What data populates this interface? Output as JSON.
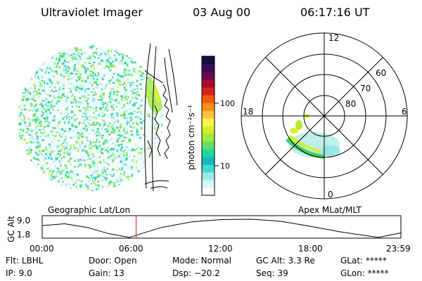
{
  "header": {
    "title": "Ultraviolet Imager",
    "date": "03 Aug 00",
    "time": "06:17:16 UT"
  },
  "colorbar": {
    "label": "photon cm⁻²s⁻¹",
    "ticks": [
      {
        "value": 100,
        "label": "100"
      },
      {
        "value": 10,
        "label": "10"
      }
    ],
    "colors": [
      "#ffffff",
      "#d8f6f4",
      "#9be9e6",
      "#43d6d3",
      "#18b8b8",
      "#27d69a",
      "#5de063",
      "#a2e83a",
      "#d3f02a",
      "#fff24a",
      "#ffc13a",
      "#ff8c14",
      "#f25a0c",
      "#d8201c",
      "#a40d2c",
      "#6e0a46",
      "#3c0b59",
      "#10103a"
    ]
  },
  "globe_panel": {
    "label": "Geographic Lat/Lon"
  },
  "polar_panel": {
    "label": "Apex MLat/MLT",
    "mlt_labels": {
      "top": "12",
      "left": "18",
      "right": "6",
      "bottom": "0"
    },
    "lat_labels": [
      "60",
      "70",
      "80"
    ]
  },
  "timeline": {
    "axis_label": "GC Alt",
    "y_ticks": [
      "9.0",
      "1.8"
    ],
    "x_ticks": [
      "00:00",
      "06:00",
      "12:00",
      "18:00",
      "23:59"
    ],
    "current_time_hours": 6.288
  },
  "info": {
    "filter_label": "Flt:",
    "filter_value": "LBHL",
    "ip_label": "IP:",
    "ip_value": "9.0",
    "door_label": "Door:",
    "door_value": "Open",
    "gain_label": "Gain:",
    "gain_value": "13",
    "mode_label": "Mode:",
    "mode_value": "Normal",
    "dsp_label": "Dsp:",
    "dsp_value": "−20.2",
    "gcalt_label": "GC Alt:",
    "gcalt_value": "3.3 Re",
    "seq_label": "Seq:",
    "seq_value": "39",
    "glat_label": "GLat:",
    "glat_value": "*****",
    "glon_label": "GLon:",
    "glon_value": "*****"
  }
}
